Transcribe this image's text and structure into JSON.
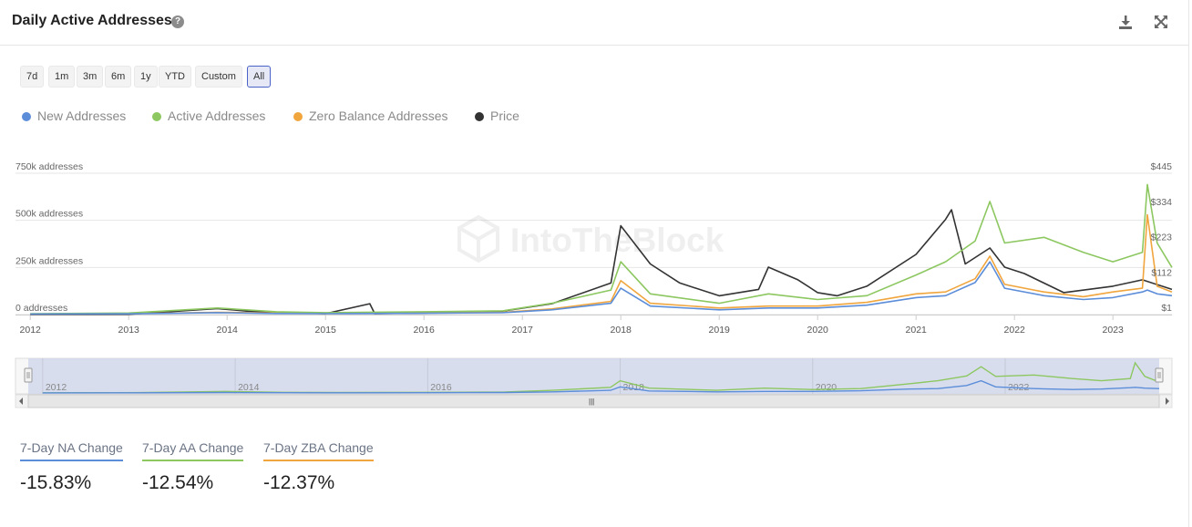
{
  "header": {
    "title": "Daily Active Addresses",
    "help_icon": "question-circle-icon",
    "download_icon": "download-icon",
    "expand_icon": "expand-icon"
  },
  "ranges": [
    {
      "label": "7d",
      "active": false
    },
    {
      "label": "1m",
      "active": false
    },
    {
      "label": "3m",
      "active": false
    },
    {
      "label": "6m",
      "active": false
    },
    {
      "label": "1y",
      "active": false
    },
    {
      "label": "YTD",
      "active": false
    },
    {
      "label": "Custom",
      "active": false
    },
    {
      "label": "All",
      "active": true
    }
  ],
  "watermark": "IntoTheBlock",
  "chart_data": {
    "type": "line",
    "xlim": [
      2011.85,
      2023.6
    ],
    "x_ticks": [
      "2012",
      "2013",
      "2014",
      "2015",
      "2016",
      "2017",
      "2018",
      "2019",
      "2020",
      "2021",
      "2022",
      "2023"
    ],
    "y_left": {
      "ylim": [
        0,
        750000
      ],
      "tick_labels": [
        "750k addresses",
        "500k addresses",
        "250k addresses",
        "0 addresses"
      ]
    },
    "y_right": {
      "ylim": [
        1,
        445
      ],
      "tick_labels": [
        "$445",
        "$334",
        "$223",
        "$112",
        "$1"
      ]
    },
    "series": [
      {
        "name": "New Addresses",
        "color": "#5b8dd9",
        "axis": "left",
        "x": [
          2012,
          2013,
          2013.9,
          2014.5,
          2015,
          2016,
          2016.8,
          2017.3,
          2017.9,
          2018.0,
          2018.3,
          2019,
          2019.5,
          2020,
          2020.5,
          2021.0,
          2021.3,
          2021.6,
          2021.75,
          2021.9,
          2022.3,
          2022.7,
          2023.0,
          2023.3,
          2023.35,
          2023.45,
          2023.6
        ],
        "y": [
          3000,
          4000,
          10000,
          6000,
          5000,
          7000,
          10000,
          25000,
          60000,
          140000,
          45000,
          25000,
          35000,
          35000,
          50000,
          90000,
          100000,
          170000,
          280000,
          140000,
          100000,
          80000,
          90000,
          120000,
          130000,
          110000,
          100000
        ]
      },
      {
        "name": "Active Addresses",
        "color": "#8cc760",
        "axis": "left",
        "x": [
          2012,
          2013,
          2013.9,
          2014.5,
          2015,
          2016,
          2016.8,
          2017.3,
          2017.9,
          2018.0,
          2018.3,
          2019,
          2019.5,
          2020,
          2020.5,
          2021.0,
          2021.3,
          2021.6,
          2021.75,
          2021.9,
          2022.3,
          2022.7,
          2023.0,
          2023.3,
          2023.35,
          2023.45,
          2023.6
        ],
        "y": [
          5000,
          8000,
          35000,
          15000,
          10000,
          15000,
          20000,
          60000,
          130000,
          280000,
          110000,
          60000,
          110000,
          80000,
          100000,
          210000,
          280000,
          390000,
          600000,
          380000,
          410000,
          330000,
          280000,
          330000,
          690000,
          380000,
          250000
        ]
      },
      {
        "name": "Zero Balance Addresses",
        "color": "#f0a53d",
        "axis": "left",
        "x": [
          2012,
          2013,
          2013.9,
          2014.5,
          2015,
          2016,
          2016.8,
          2017.3,
          2017.9,
          2018.0,
          2018.3,
          2019,
          2019.5,
          2020,
          2020.5,
          2021.0,
          2021.3,
          2021.6,
          2021.75,
          2021.9,
          2022.3,
          2022.7,
          2023.0,
          2023.3,
          2023.35,
          2023.45,
          2023.6
        ],
        "y": [
          3000,
          5000,
          12000,
          8000,
          6000,
          9000,
          12000,
          30000,
          70000,
          180000,
          60000,
          35000,
          45000,
          45000,
          65000,
          110000,
          120000,
          190000,
          310000,
          160000,
          120000,
          95000,
          120000,
          140000,
          530000,
          150000,
          120000
        ]
      },
      {
        "name": "Price",
        "color": "#333333",
        "axis": "right",
        "x": [
          2012,
          2013,
          2013.9,
          2014.2,
          2014.5,
          2015,
          2015.45,
          2015.5,
          2016,
          2016.8,
          2017.3,
          2017.9,
          2018.0,
          2018.3,
          2018.6,
          2019,
          2019.4,
          2019.5,
          2019.8,
          2020,
          2020.2,
          2020.5,
          2021.0,
          2021.3,
          2021.36,
          2021.5,
          2021.75,
          2021.9,
          2022.1,
          2022.5,
          2023.0,
          2023.3,
          2023.6
        ],
        "y": [
          1,
          2,
          20,
          12,
          8,
          4,
          35,
          4,
          6,
          12,
          35,
          100,
          280,
          160,
          100,
          60,
          80,
          150,
          110,
          70,
          60,
          90,
          190,
          300,
          330,
          160,
          210,
          150,
          130,
          70,
          90,
          110,
          80
        ]
      }
    ]
  },
  "navigator": {
    "tick_labels": [
      "2012",
      "2014",
      "2016",
      "2018",
      "2020",
      "2022"
    ],
    "handle_glyph": "|||"
  },
  "stats": [
    {
      "label": "7-Day NA Change",
      "value": "-15.83%",
      "color": "#5b8dd9"
    },
    {
      "label": "7-Day AA Change",
      "value": "-12.54%",
      "color": "#8cc760"
    },
    {
      "label": "7-Day ZBA Change",
      "value": "-12.37%",
      "color": "#f0a53d"
    }
  ]
}
